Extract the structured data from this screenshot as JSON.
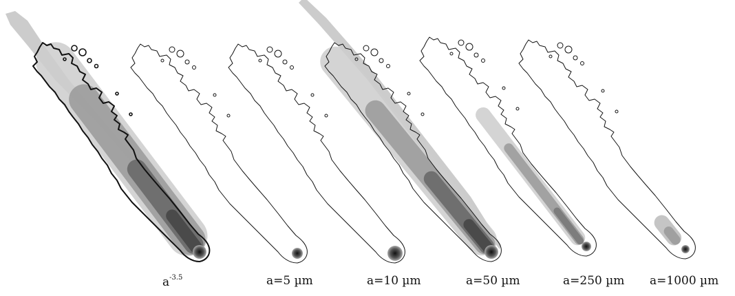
{
  "panels": [
    {
      "id": "power",
      "label_base": "a",
      "label_exp": "-3.5",
      "label": ""
    },
    {
      "id": "a5",
      "label": "a=5 µm"
    },
    {
      "id": "a10",
      "label": "a=10 µm"
    },
    {
      "id": "a50",
      "label": "a=50 µm"
    },
    {
      "id": "a250",
      "label": "a=250 µm"
    },
    {
      "id": "a1000",
      "label": "a=1000 µm"
    }
  ],
  "colors": {
    "background": "#ffffff",
    "contour": "#111111",
    "halo": "#cccccc",
    "mid": "#999999",
    "core": "#444444"
  }
}
